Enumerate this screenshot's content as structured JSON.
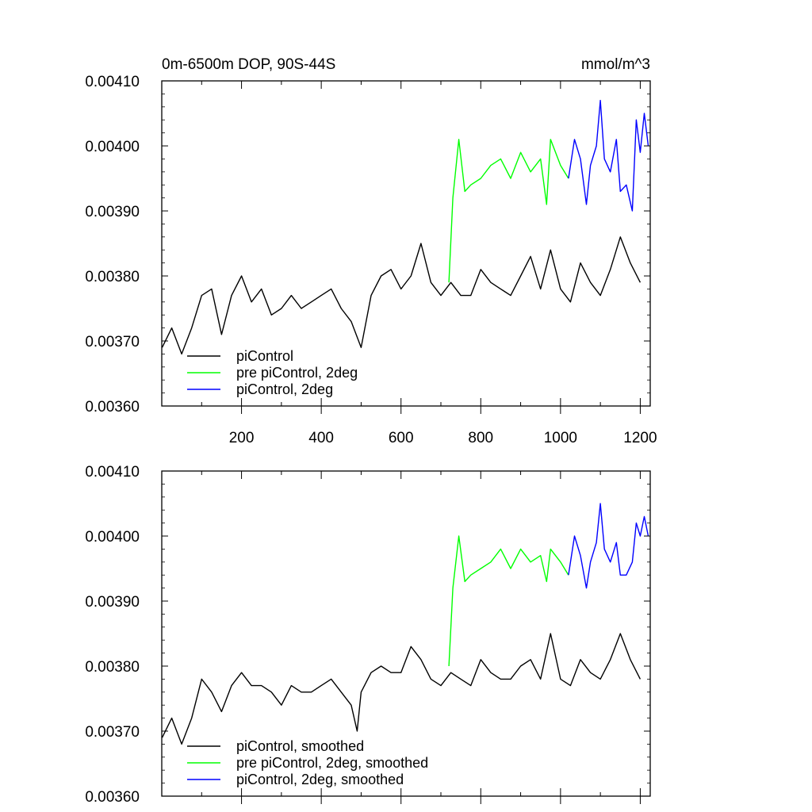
{
  "chart_data": [
    {
      "type": "line",
      "title": "0m-6500m DOP, 90S-44S",
      "units": "mmol/m^3",
      "xlim": [
        0,
        1225
      ],
      "ylim": [
        0.0036,
        0.0041
      ],
      "xticks": [
        200,
        400,
        600,
        800,
        1000,
        1200
      ],
      "xtick_labels": [
        "200",
        "400",
        "600",
        "800",
        "1000",
        "1200"
      ],
      "yticks": [
        0.0036,
        0.0037,
        0.0038,
        0.0039,
        0.004,
        0.0041
      ],
      "ytick_labels": [
        "0.00360",
        "0.00370",
        "0.00380",
        "0.00390",
        "0.00400",
        "0.00410"
      ],
      "legend_position": "bottom-left",
      "series": [
        {
          "name": "piControl",
          "color": "#000000",
          "x": [
            1,
            25,
            50,
            75,
            100,
            125,
            150,
            175,
            200,
            225,
            250,
            275,
            300,
            325,
            350,
            375,
            400,
            425,
            450,
            475,
            500,
            525,
            550,
            575,
            600,
            625,
            650,
            675,
            700,
            725,
            750,
            775,
            800,
            825,
            850,
            875,
            900,
            925,
            950,
            975,
            1000,
            1025,
            1050,
            1075,
            1100,
            1125,
            1150,
            1175,
            1200
          ],
          "y": [
            0.00369,
            0.00372,
            0.00368,
            0.00372,
            0.00377,
            0.00378,
            0.00371,
            0.00377,
            0.0038,
            0.00376,
            0.00378,
            0.00374,
            0.00375,
            0.00377,
            0.00375,
            0.00376,
            0.00377,
            0.00378,
            0.00375,
            0.00373,
            0.00369,
            0.00377,
            0.0038,
            0.00381,
            0.00378,
            0.0038,
            0.00385,
            0.00379,
            0.00377,
            0.00379,
            0.00377,
            0.00377,
            0.00381,
            0.00379,
            0.00378,
            0.00377,
            0.0038,
            0.00383,
            0.00378,
            0.00384,
            0.00378,
            0.00376,
            0.00382,
            0.00379,
            0.00377,
            0.00381,
            0.00386,
            0.00382,
            0.00379
          ]
        },
        {
          "name": "pre piControl, 2deg",
          "color": "#00ff00",
          "x": [
            720,
            730,
            745,
            760,
            775,
            800,
            825,
            850,
            875,
            900,
            925,
            950,
            965,
            975,
            1000,
            1020
          ],
          "y": [
            0.00379,
            0.00392,
            0.00401,
            0.00393,
            0.00394,
            0.00395,
            0.00397,
            0.00398,
            0.00395,
            0.00399,
            0.00396,
            0.00398,
            0.00391,
            0.00401,
            0.00397,
            0.00395
          ]
        },
        {
          "name": "piControl, 2deg",
          "color": "#0000ff",
          "x": [
            1020,
            1035,
            1050,
            1065,
            1075,
            1090,
            1100,
            1110,
            1125,
            1140,
            1150,
            1165,
            1180,
            1190,
            1200,
            1210,
            1220
          ],
          "y": [
            0.00395,
            0.00401,
            0.00398,
            0.00391,
            0.00397,
            0.004,
            0.00407,
            0.00398,
            0.00396,
            0.00401,
            0.00393,
            0.00394,
            0.0039,
            0.00404,
            0.00399,
            0.00405,
            0.004
          ]
        }
      ]
    },
    {
      "type": "line",
      "xlim": [
        0,
        1225
      ],
      "ylim": [
        0.0036,
        0.0041
      ],
      "yticks": [
        0.0036,
        0.0037,
        0.0038,
        0.0039,
        0.004,
        0.0041
      ],
      "ytick_labels": [
        "0.00360",
        "0.00370",
        "0.00380",
        "0.00390",
        "0.00400",
        "0.00410"
      ],
      "legend_position": "bottom-left",
      "series": [
        {
          "name": "piControl, smoothed",
          "color": "#000000",
          "x": [
            1,
            25,
            50,
            75,
            100,
            125,
            150,
            175,
            200,
            225,
            250,
            275,
            300,
            325,
            350,
            375,
            400,
            425,
            450,
            475,
            490,
            500,
            525,
            550,
            575,
            600,
            625,
            650,
            675,
            700,
            725,
            750,
            775,
            800,
            825,
            850,
            875,
            900,
            925,
            950,
            975,
            1000,
            1025,
            1050,
            1075,
            1100,
            1125,
            1150,
            1175,
            1200
          ],
          "y": [
            0.00369,
            0.00372,
            0.00368,
            0.00372,
            0.00378,
            0.00376,
            0.00373,
            0.00377,
            0.00379,
            0.00377,
            0.00377,
            0.00376,
            0.00374,
            0.00377,
            0.00376,
            0.00376,
            0.00377,
            0.00378,
            0.00376,
            0.00374,
            0.0037,
            0.00376,
            0.00379,
            0.0038,
            0.00379,
            0.00379,
            0.00383,
            0.00381,
            0.00378,
            0.00377,
            0.00379,
            0.00378,
            0.00377,
            0.00381,
            0.00379,
            0.00378,
            0.00378,
            0.0038,
            0.00381,
            0.00378,
            0.00385,
            0.00378,
            0.00377,
            0.00381,
            0.00379,
            0.00378,
            0.00381,
            0.00385,
            0.00381,
            0.00378
          ]
        },
        {
          "name": "pre piControl, 2deg, smoothed",
          "color": "#00ff00",
          "x": [
            720,
            730,
            745,
            760,
            775,
            800,
            825,
            850,
            875,
            900,
            925,
            950,
            965,
            975,
            1000,
            1020
          ],
          "y": [
            0.0038,
            0.00392,
            0.004,
            0.00393,
            0.00394,
            0.00395,
            0.00396,
            0.00398,
            0.00395,
            0.00398,
            0.00396,
            0.00397,
            0.00393,
            0.00398,
            0.00396,
            0.00394
          ]
        },
        {
          "name": "piControl, 2deg, smoothed",
          "color": "#0000ff",
          "x": [
            1020,
            1035,
            1050,
            1065,
            1075,
            1090,
            1100,
            1110,
            1125,
            1140,
            1150,
            1165,
            1180,
            1190,
            1200,
            1210,
            1220
          ],
          "y": [
            0.00394,
            0.004,
            0.00397,
            0.00392,
            0.00396,
            0.00399,
            0.00405,
            0.00398,
            0.00396,
            0.00399,
            0.00394,
            0.00394,
            0.00396,
            0.00402,
            0.004,
            0.00403,
            0.004
          ]
        }
      ]
    }
  ]
}
